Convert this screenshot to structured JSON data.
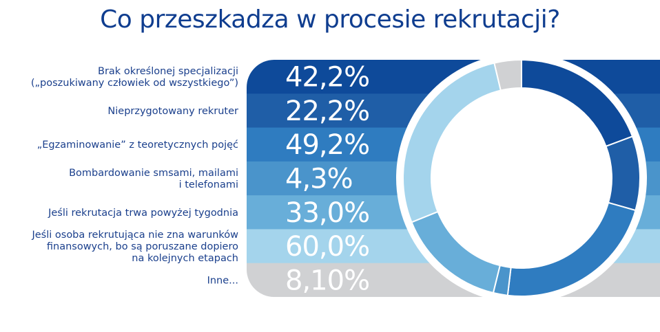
{
  "chart_data": {
    "type": "bar+donut",
    "title": "Co przeszkadza w procesie rekrutacji?",
    "categories": [
      [
        "Brak określonej specjalizacji",
        "(„poszukiwany człowiek od wszystkiego”)"
      ],
      [
        "Nieprzygotowany rekruter"
      ],
      [
        "„Egzaminowanie” z teoretycznych pojęć"
      ],
      [
        "Bombardowanie smsami, mailami",
        "i telefonami"
      ],
      [
        "Jeśli rekrutacja trwa powyżej tygodnia"
      ],
      [
        "Jeśli osoba rekrutująca nie zna warunków",
        "finansowych, bo są poruszane dopiero",
        "na kolejnych etapach"
      ],
      [
        "Inne..."
      ]
    ],
    "values": [
      42.2,
      22.2,
      49.2,
      4.3,
      33.0,
      60.0,
      8.1
    ],
    "value_labels": [
      "42,2%",
      "22,2%",
      "49,2%",
      "4,3%",
      "33,0%",
      "60,0%",
      "8,10%"
    ],
    "colors": [
      "#0e4a9a",
      "#1f5ea7",
      "#2f7cc0",
      "#4a94cb",
      "#68aed9",
      "#a4d4ec",
      "#d0d1d3"
    ]
  }
}
